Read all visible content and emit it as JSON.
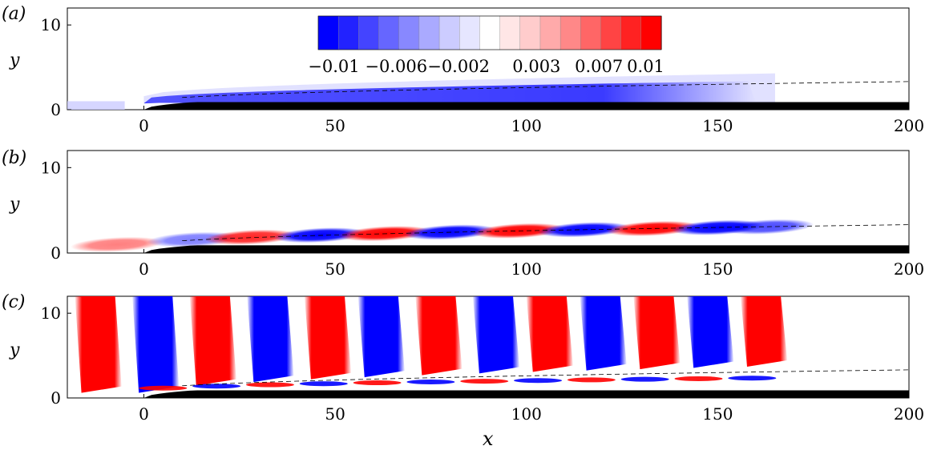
{
  "chart_data": [
    {
      "type": "heatmap",
      "panel_label": "(a)",
      "xlabel": "",
      "ylabel": "y",
      "xlim": [
        -20,
        200
      ],
      "ylim": [
        0,
        12
      ],
      "x_ticks": [
        "0",
        "50",
        "100",
        "150",
        "200"
      ],
      "y_ticks": [
        "0",
        "10"
      ],
      "field": "steady streak-like negative perturbation confined inside the boundary layer, x ≈ 0 to 160",
      "colorbar": {
        "colors": [
          "#0000ff",
          "#2222ff",
          "#4444ff",
          "#6666ff",
          "#8888ff",
          "#aaaaff",
          "#ccccff",
          "#e6e6ff",
          "#ffffff",
          "#ffe6e6",
          "#ffcccc",
          "#ffaaaa",
          "#ff8888",
          "#ff6666",
          "#ff4444",
          "#ff2222",
          "#ff0000"
        ],
        "tick_labels": [
          "−0.01",
          "−0.006",
          "−0.002",
          "0.003",
          "0.007",
          "0.01"
        ],
        "tick_values": [
          -0.01,
          -0.006,
          -0.002,
          0.003,
          0.007,
          0.01
        ]
      }
    },
    {
      "type": "heatmap",
      "panel_label": "(b)",
      "xlabel": "",
      "ylabel": "y",
      "xlim": [
        -20,
        200
      ],
      "ylim": [
        0,
        12
      ],
      "x_ticks": [
        "0",
        "50",
        "100",
        "150",
        "200"
      ],
      "y_ticks": [
        "0",
        "10"
      ],
      "field": "alternating positive and negative wave packets inside the boundary layer, x ≈ -20 to 165"
    },
    {
      "type": "heatmap",
      "panel_label": "(c)",
      "xlabel": "x",
      "ylabel": "y",
      "xlim": [
        -20,
        200
      ],
      "ylim": [
        0,
        12
      ],
      "x_ticks": [
        "0",
        "50",
        "100",
        "150",
        "200"
      ],
      "y_ticks": [
        "0",
        "10"
      ],
      "field": "alternating positive and negative bands spanning full height, x ≈ -20 to 165"
    }
  ],
  "colors": {
    "positive": "#ff0000",
    "negative": "#0000ff",
    "plate": "#000000"
  }
}
